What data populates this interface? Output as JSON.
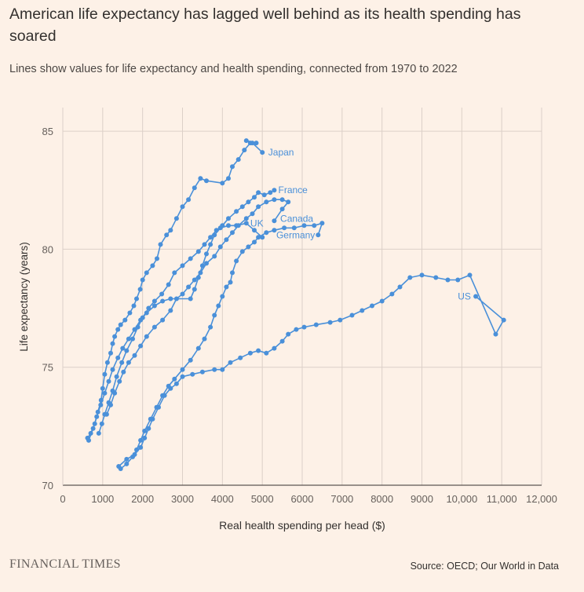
{
  "header": {
    "title": "American life expectancy has lagged well behind as its health spending has soared",
    "subtitle": "Lines show values for life expectancy and health spending, connected from 1970 to 2022"
  },
  "footer": {
    "logo": "FINANCIAL TIMES",
    "source": "Source: OECD; Our World in Data"
  },
  "colors": {
    "background": "#fdf1e7",
    "grid": "#dcd0c8",
    "series": "#4a90d9",
    "text": "#33302e"
  },
  "chart_data": {
    "type": "line",
    "xlabel": "Real health spending per head ($)",
    "ylabel": "Life expectancy (years)",
    "xlim": [
      0,
      12000
    ],
    "ylim": [
      70,
      86
    ],
    "xticks": [
      0,
      1000,
      2000,
      3000,
      4000,
      5000,
      6000,
      7000,
      8000,
      9000,
      10000,
      11000,
      12000
    ],
    "xtick_labels": [
      "0",
      "1000",
      "2000",
      "3000",
      "4000",
      "5000",
      "6000",
      "7000",
      "8000",
      "9000",
      "10,000",
      "11,000",
      "12,000"
    ],
    "yticks": [
      70,
      75,
      80,
      85
    ],
    "ytick_labels": [
      "70",
      "75",
      "80",
      "85"
    ],
    "grid": true,
    "series": [
      {
        "name": "Japan",
        "points": [
          [
            620,
            72.0
          ],
          [
            700,
            72.2
          ],
          [
            800,
            72.6
          ],
          [
            880,
            73.1
          ],
          [
            960,
            73.6
          ],
          [
            1000,
            74.1
          ],
          [
            1050,
            74.7
          ],
          [
            1120,
            75.2
          ],
          [
            1200,
            75.6
          ],
          [
            1250,
            76.0
          ],
          [
            1300,
            76.3
          ],
          [
            1380,
            76.6
          ],
          [
            1450,
            76.8
          ],
          [
            1560,
            77.0
          ],
          [
            1680,
            77.3
          ],
          [
            1780,
            77.6
          ],
          [
            1850,
            77.9
          ],
          [
            1940,
            78.3
          ],
          [
            2000,
            78.7
          ],
          [
            2100,
            79.0
          ],
          [
            2250,
            79.3
          ],
          [
            2360,
            79.6
          ],
          [
            2450,
            80.2
          ],
          [
            2600,
            80.6
          ],
          [
            2700,
            80.8
          ],
          [
            2850,
            81.3
          ],
          [
            3000,
            81.8
          ],
          [
            3150,
            82.1
          ],
          [
            3300,
            82.6
          ],
          [
            3450,
            83.0
          ],
          [
            3600,
            82.9
          ],
          [
            4000,
            82.8
          ],
          [
            4150,
            83.0
          ],
          [
            4250,
            83.5
          ],
          [
            4400,
            83.8
          ],
          [
            4550,
            84.2
          ],
          [
            4700,
            84.5
          ],
          [
            4850,
            84.5
          ],
          [
            4600,
            84.6
          ],
          [
            4750,
            84.5
          ],
          [
            5000,
            84.1
          ]
        ]
      },
      {
        "name": "France",
        "points": [
          [
            900,
            72.2
          ],
          [
            980,
            72.6
          ],
          [
            1050,
            73.0
          ],
          [
            1150,
            73.5
          ],
          [
            1250,
            74.0
          ],
          [
            1350,
            74.6
          ],
          [
            1480,
            75.2
          ],
          [
            1600,
            75.7
          ],
          [
            1750,
            76.2
          ],
          [
            1880,
            76.7
          ],
          [
            2000,
            77.1
          ],
          [
            2150,
            77.5
          ],
          [
            2300,
            77.8
          ],
          [
            2480,
            78.1
          ],
          [
            2650,
            78.5
          ],
          [
            2800,
            79.0
          ],
          [
            3000,
            79.3
          ],
          [
            3200,
            79.6
          ],
          [
            3400,
            79.9
          ],
          [
            3550,
            80.2
          ],
          [
            3700,
            80.5
          ],
          [
            3850,
            80.8
          ],
          [
            4000,
            81.0
          ],
          [
            4150,
            81.3
          ],
          [
            4350,
            81.6
          ],
          [
            4500,
            81.8
          ],
          [
            4650,
            82.0
          ],
          [
            4800,
            82.2
          ],
          [
            4900,
            82.4
          ],
          [
            5050,
            82.3
          ],
          [
            5200,
            82.4
          ],
          [
            5300,
            82.5
          ]
        ]
      },
      {
        "name": "Canada",
        "points": [
          [
            1100,
            73.0
          ],
          [
            1200,
            73.4
          ],
          [
            1300,
            73.9
          ],
          [
            1420,
            74.4
          ],
          [
            1520,
            74.8
          ],
          [
            1650,
            75.2
          ],
          [
            1800,
            75.5
          ],
          [
            1950,
            75.9
          ],
          [
            2100,
            76.3
          ],
          [
            2300,
            76.7
          ],
          [
            2500,
            77.0
          ],
          [
            2700,
            77.4
          ],
          [
            2850,
            77.9
          ],
          [
            3000,
            78.1
          ],
          [
            3150,
            78.4
          ],
          [
            3300,
            78.7
          ],
          [
            3450,
            79.0
          ],
          [
            3600,
            79.4
          ],
          [
            3800,
            79.7
          ],
          [
            3950,
            80.1
          ],
          [
            4100,
            80.4
          ],
          [
            4250,
            80.7
          ],
          [
            4400,
            81.0
          ],
          [
            4600,
            81.3
          ],
          [
            4750,
            81.5
          ],
          [
            4900,
            81.8
          ],
          [
            5100,
            82.0
          ],
          [
            5300,
            82.1
          ],
          [
            5500,
            82.1
          ],
          [
            5650,
            82.0
          ],
          [
            5500,
            81.7
          ],
          [
            5300,
            81.2
          ]
        ]
      },
      {
        "name": "UK",
        "points": [
          [
            650,
            71.9
          ],
          [
            760,
            72.4
          ],
          [
            850,
            72.9
          ],
          [
            950,
            73.4
          ],
          [
            1050,
            73.9
          ],
          [
            1150,
            74.4
          ],
          [
            1250,
            74.9
          ],
          [
            1380,
            75.4
          ],
          [
            1500,
            75.8
          ],
          [
            1650,
            76.2
          ],
          [
            1800,
            76.6
          ],
          [
            1950,
            77.0
          ],
          [
            2100,
            77.3
          ],
          [
            2300,
            77.6
          ],
          [
            2500,
            77.8
          ],
          [
            2700,
            77.9
          ],
          [
            3200,
            77.9
          ],
          [
            3300,
            78.3
          ],
          [
            3400,
            78.8
          ],
          [
            3500,
            79.3
          ],
          [
            3600,
            79.8
          ],
          [
            3700,
            80.2
          ],
          [
            3800,
            80.6
          ],
          [
            3950,
            80.9
          ],
          [
            4150,
            81.0
          ],
          [
            4350,
            81.0
          ],
          [
            4600,
            81.1
          ],
          [
            4800,
            80.8
          ],
          [
            5000,
            80.5
          ]
        ]
      },
      {
        "name": "Germany",
        "points": [
          [
            1450,
            70.7
          ],
          [
            1600,
            70.9
          ],
          [
            1750,
            71.2
          ],
          [
            1850,
            71.5
          ],
          [
            1950,
            71.9
          ],
          [
            2050,
            72.3
          ],
          [
            2200,
            72.8
          ],
          [
            2350,
            73.3
          ],
          [
            2500,
            73.8
          ],
          [
            2650,
            74.2
          ],
          [
            2800,
            74.5
          ],
          [
            3000,
            74.9
          ],
          [
            3200,
            75.3
          ],
          [
            3400,
            75.8
          ],
          [
            3550,
            76.2
          ],
          [
            3700,
            76.7
          ],
          [
            3800,
            77.2
          ],
          [
            3900,
            77.6
          ],
          [
            4000,
            78.0
          ],
          [
            4100,
            78.4
          ],
          [
            4200,
            78.6
          ],
          [
            4250,
            79.0
          ],
          [
            4350,
            79.5
          ],
          [
            4500,
            79.9
          ],
          [
            4650,
            80.1
          ],
          [
            4800,
            80.3
          ],
          [
            4900,
            80.5
          ],
          [
            5100,
            80.7
          ],
          [
            5300,
            80.8
          ],
          [
            5550,
            80.9
          ],
          [
            5800,
            80.9
          ],
          [
            6050,
            81.0
          ],
          [
            6300,
            81.0
          ],
          [
            6500,
            81.1
          ],
          [
            6400,
            80.6
          ]
        ]
      },
      {
        "name": "US",
        "points": [
          [
            1400,
            70.8
          ],
          [
            1600,
            71.1
          ],
          [
            1800,
            71.3
          ],
          [
            1950,
            71.6
          ],
          [
            2050,
            72.0
          ],
          [
            2150,
            72.4
          ],
          [
            2250,
            72.8
          ],
          [
            2400,
            73.3
          ],
          [
            2550,
            73.8
          ],
          [
            2700,
            74.1
          ],
          [
            2850,
            74.3
          ],
          [
            3000,
            74.6
          ],
          [
            3250,
            74.7
          ],
          [
            3500,
            74.8
          ],
          [
            3800,
            74.9
          ],
          [
            4000,
            74.9
          ],
          [
            4200,
            75.2
          ],
          [
            4450,
            75.4
          ],
          [
            4700,
            75.6
          ],
          [
            4900,
            75.7
          ],
          [
            5100,
            75.6
          ],
          [
            5300,
            75.8
          ],
          [
            5500,
            76.1
          ],
          [
            5650,
            76.4
          ],
          [
            5850,
            76.6
          ],
          [
            6050,
            76.7
          ],
          [
            6350,
            76.8
          ],
          [
            6700,
            76.9
          ],
          [
            6950,
            77.0
          ],
          [
            7250,
            77.2
          ],
          [
            7500,
            77.4
          ],
          [
            7750,
            77.6
          ],
          [
            8000,
            77.8
          ],
          [
            8250,
            78.1
          ],
          [
            8450,
            78.4
          ],
          [
            8700,
            78.8
          ],
          [
            9000,
            78.9
          ],
          [
            9350,
            78.8
          ],
          [
            9650,
            78.7
          ],
          [
            9900,
            78.7
          ],
          [
            10200,
            78.9
          ],
          [
            10850,
            76.4
          ],
          [
            11050,
            77.0
          ],
          [
            10350,
            78.0
          ]
        ]
      }
    ],
    "series_labels": [
      {
        "name": "Japan",
        "at": [
          5150,
          84.1
        ]
      },
      {
        "name": "France",
        "at": [
          5400,
          82.5
        ]
      },
      {
        "name": "Canada",
        "at": [
          5450,
          81.3
        ]
      },
      {
        "name": "UK",
        "at": [
          4700,
          81.1
        ]
      },
      {
        "name": "Germany",
        "at": [
          5350,
          80.6
        ]
      },
      {
        "name": "US",
        "at": [
          9900,
          78.0
        ]
      }
    ]
  }
}
